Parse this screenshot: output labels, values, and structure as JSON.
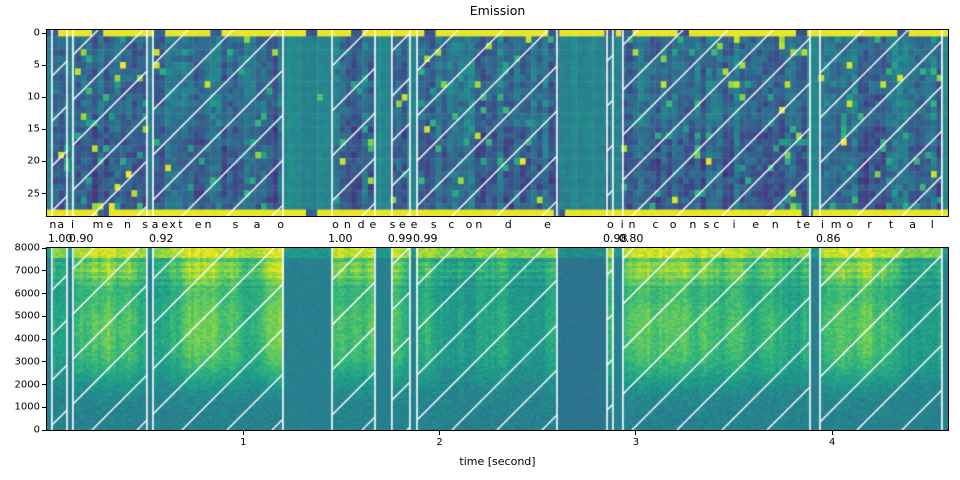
{
  "figure": {
    "title": "Emission"
  },
  "chart_data": {
    "type": "heatmap",
    "colormap": "viridis",
    "hatch_color": "#ffffff",
    "background": "#ffffff",
    "time_range_seconds": [
      0,
      4.59
    ],
    "panels": {
      "emission": {
        "title": "Emission",
        "kind": "ctc-emission-matrix",
        "n_token_rows": 29,
        "yticks": [
          0,
          5,
          10,
          15,
          20,
          25
        ],
        "blank_row_high_value_rows": [
          0,
          28
        ]
      },
      "spectrogram": {
        "kind": "spectrogram",
        "freq_range_hz": [
          0,
          8000
        ],
        "yticks": [
          0,
          1000,
          2000,
          3000,
          4000,
          5000,
          6000,
          7000,
          8000
        ],
        "xticks": [
          1,
          2,
          3,
          4
        ],
        "xlabel": "time [second]"
      }
    },
    "segments": [
      {
        "word": "na",
        "score": "1.00",
        "start": 0.025,
        "end": 0.102
      },
      {
        "word": "imensa",
        "score": "0.90",
        "start": 0.132,
        "end": 0.509
      },
      {
        "word": "extensao",
        "score": "0.92",
        "start": 0.54,
        "end": 1.202
      },
      {
        "word": "onde",
        "score": "1.00",
        "start": 1.452,
        "end": 1.671
      },
      {
        "word": "se",
        "score": "0.99",
        "start": 1.757,
        "end": 1.849
      },
      {
        "word": "esconde",
        "score": "0.99",
        "start": 1.885,
        "end": 2.598
      },
      {
        "word": "o",
        "score": "0.98",
        "start": 2.853,
        "end": 2.883
      },
      {
        "word": "inconsciente",
        "score": "0.80",
        "start": 2.934,
        "end": 3.887
      },
      {
        "word": "imortal",
        "score": "0.86",
        "start": 3.938,
        "end": 4.559
      }
    ],
    "characters": [
      [
        "n",
        0.03
      ],
      [
        "a",
        0.07
      ],
      [
        "i",
        0.13
      ],
      [
        "m",
        0.26
      ],
      [
        "e",
        0.32
      ],
      [
        "n",
        0.41
      ],
      [
        "s",
        0.5
      ],
      [
        "a",
        0.55
      ],
      [
        "e",
        0.6
      ],
      [
        "x",
        0.64
      ],
      [
        "t",
        0.68
      ],
      [
        "e",
        0.77
      ],
      [
        "n",
        0.82
      ],
      [
        "s",
        0.96
      ],
      [
        "a",
        1.07
      ],
      [
        "o",
        1.19
      ],
      [
        "o",
        1.47
      ],
      [
        "n",
        1.53
      ],
      [
        "d",
        1.6
      ],
      [
        "e",
        1.66
      ],
      [
        "s",
        1.76
      ],
      [
        "e",
        1.81
      ],
      [
        "e",
        1.87
      ],
      [
        "s",
        1.97
      ],
      [
        "c",
        2.06
      ],
      [
        "o",
        2.15
      ],
      [
        "n",
        2.2
      ],
      [
        "d",
        2.35
      ],
      [
        "e",
        2.55
      ],
      [
        "o",
        2.87
      ],
      [
        "i",
        2.93
      ],
      [
        "n",
        2.98
      ],
      [
        "c",
        3.1
      ],
      [
        "o",
        3.19
      ],
      [
        "n",
        3.29
      ],
      [
        "s",
        3.36
      ],
      [
        "c",
        3.41
      ],
      [
        "i",
        3.5
      ],
      [
        "e",
        3.61
      ],
      [
        "n",
        3.71
      ],
      [
        "t",
        3.83
      ],
      [
        "e",
        3.87
      ],
      [
        "i",
        3.95
      ],
      [
        "m",
        4.02
      ],
      [
        "o",
        4.09
      ],
      [
        "r",
        4.19
      ],
      [
        "t",
        4.3
      ],
      [
        "a",
        4.41
      ],
      [
        "l",
        4.51
      ]
    ],
    "emission_blank_dips": [
      0.04,
      0.27,
      0.58,
      0.86,
      1.34,
      1.59,
      1.94,
      2.57,
      2.87,
      2.96,
      3.25,
      3.84,
      4.37
    ],
    "emission_bottom_dips": [
      0.3,
      1.36,
      2.6,
      3.86
    ]
  }
}
